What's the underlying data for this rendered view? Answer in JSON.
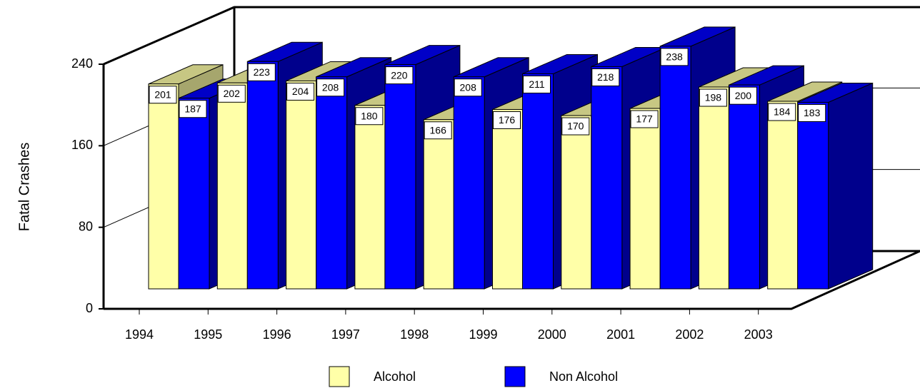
{
  "chart_data": {
    "type": "bar3d",
    "y_label": "Fatal Crashes",
    "categories": [
      "1994",
      "1995",
      "1996",
      "1997",
      "1998",
      "1999",
      "2000",
      "2001",
      "2002",
      "2003"
    ],
    "series": [
      {
        "name": "Alcohol",
        "color": "#ffffa8",
        "values": [
          201,
          202,
          204,
          180,
          166,
          176,
          170,
          177,
          198,
          184
        ]
      },
      {
        "name": "Non Alcohol",
        "color": "#0000ff",
        "values": [
          187,
          223,
          208,
          220,
          208,
          211,
          218,
          238,
          200,
          183
        ]
      }
    ],
    "ylim": [
      0,
      240
    ],
    "yticks": [
      0,
      80,
      160,
      240
    ],
    "grid": true,
    "legend": "bottom"
  }
}
